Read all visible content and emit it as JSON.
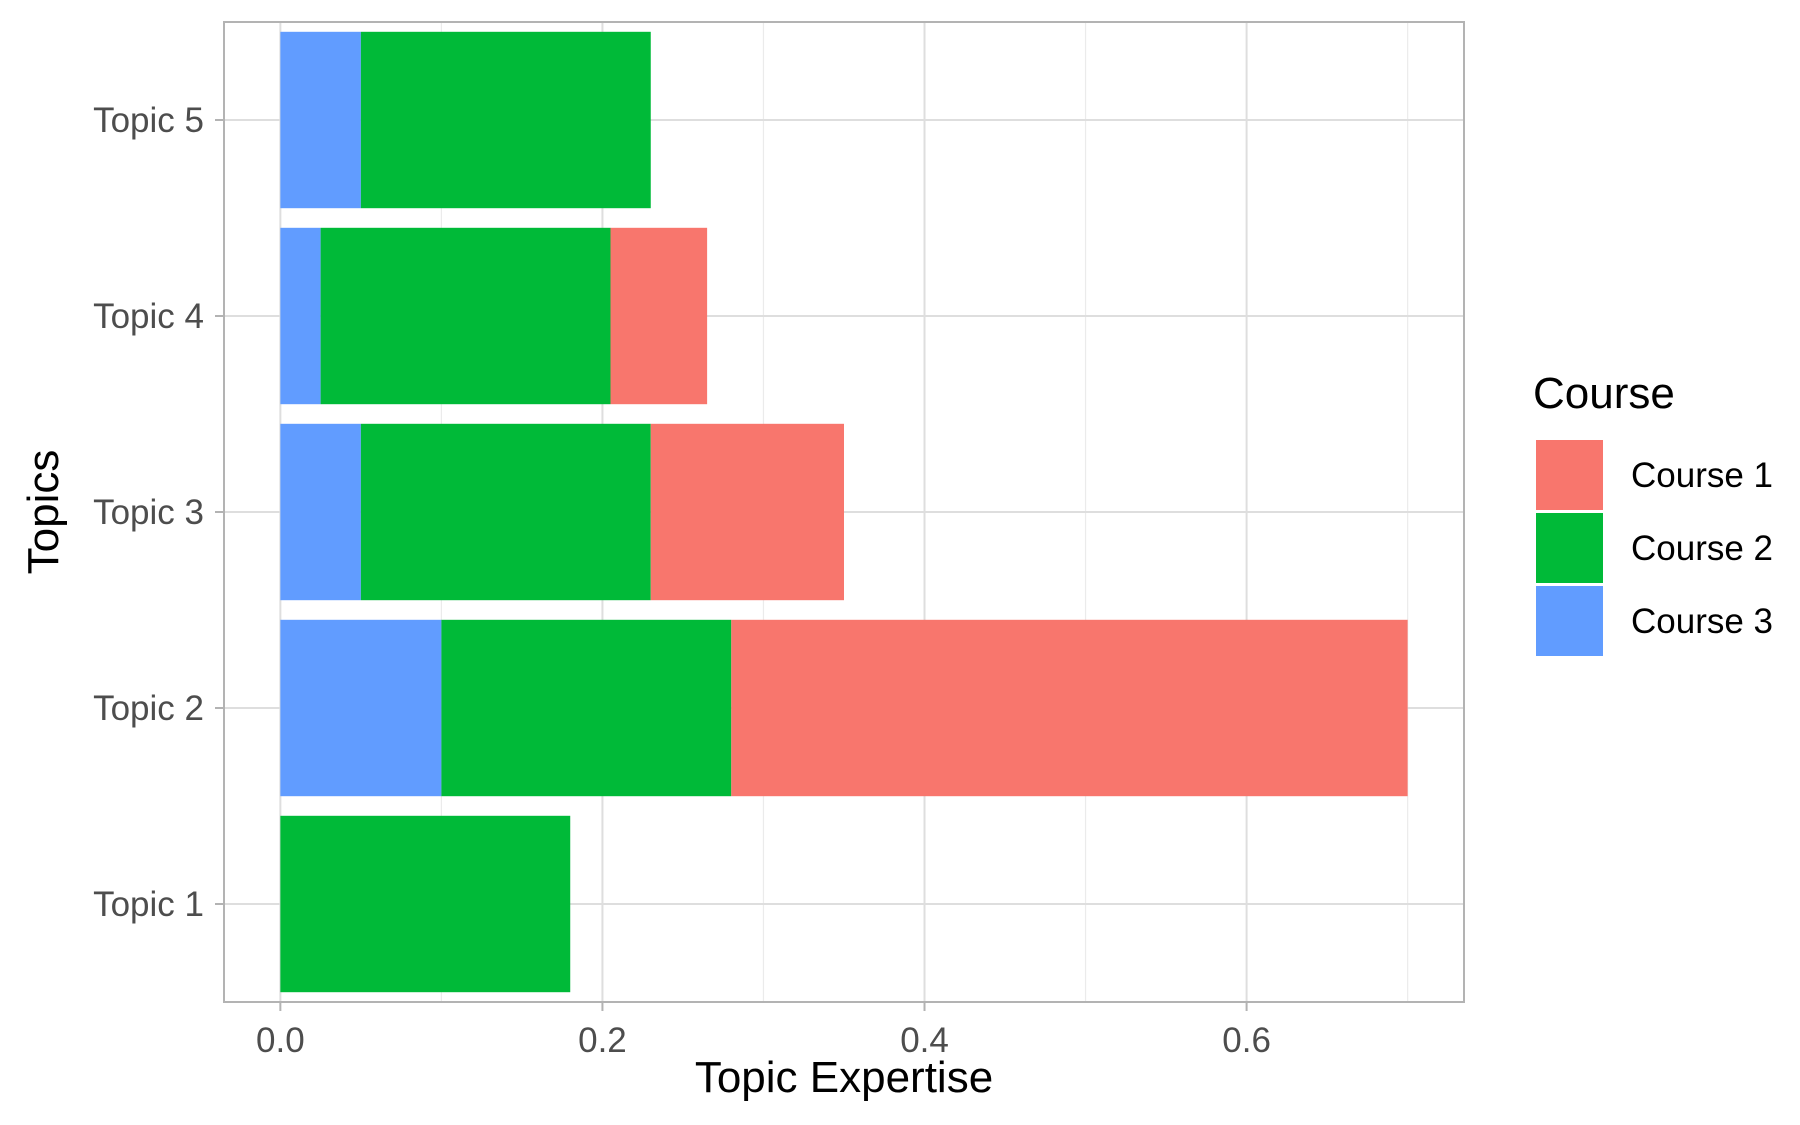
{
  "chart_data": {
    "type": "bar",
    "orientation": "horizontal",
    "stacked": true,
    "categories": [
      "Topic 1",
      "Topic 2",
      "Topic 3",
      "Topic 4",
      "Topic 5"
    ],
    "series": [
      {
        "name": "Course 1",
        "color": "#F8766D",
        "values": [
          0.0,
          0.42,
          0.12,
          0.06,
          0.0
        ]
      },
      {
        "name": "Course 2",
        "color": "#00BA38",
        "values": [
          0.18,
          0.18,
          0.18,
          0.18,
          0.18
        ]
      },
      {
        "name": "Course 3",
        "color": "#619CFF",
        "values": [
          0.0,
          0.1,
          0.05,
          0.025,
          0.05
        ]
      }
    ],
    "stack_order_from_axis": [
      "Course 3",
      "Course 2",
      "Course 1"
    ],
    "xlabel": "Topic Expertise",
    "ylabel": "Topics",
    "xlim": [
      -0.035,
      0.735
    ],
    "x_ticks": [
      0.0,
      0.2,
      0.4,
      0.6
    ],
    "x_tick_labels": [
      "0.0",
      "0.2",
      "0.4",
      "0.6"
    ],
    "legend": {
      "title": "Course",
      "position": "right"
    },
    "grid": true,
    "theme": "light"
  }
}
